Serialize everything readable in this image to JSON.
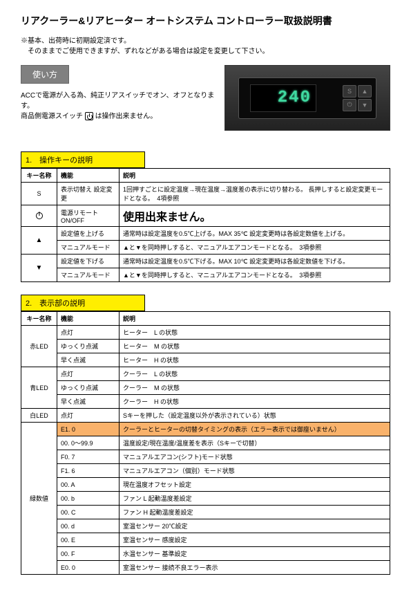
{
  "title": "リアクーラー&リアヒーター オートシステム コントローラー取扱説明書",
  "note_line1": "※基本、出荷時に初期設定済です。",
  "note_line2": "そのままでご使用できますが、ずれなどがある場合は設定を変更して下さい。",
  "usage_badge": "使い方",
  "usage_line1": "ACCで電源が入る為、純正リアスイッチでオン、オフとなります。",
  "usage_line2a": "商品側電源スイッチ",
  "usage_line2b": "は操作出来ません。",
  "display_value": "240",
  "device_btn_s": "S",
  "device_btn_pwr": "⏻",
  "device_btn_up": "▲",
  "device_btn_down": "▼",
  "section1_title": "1.　操作キーの説明",
  "t1_hdr_key": "キー名称",
  "t1_hdr_func": "機能",
  "t1_hdr_desc": "説明",
  "t1_r1_key": "S",
  "t1_r1_func": "表示切替え\n設定変更",
  "t1_r1_desc": "1回押すごとに設定温度→現在温度→温度差の表示に切り替わる。\n長押しすると設定変更モードとなる。　4項参照",
  "t1_r2_func": "電源リモート\nON/OFF",
  "t1_r2_desc": "使用出来ません。",
  "t1_r3_key": "▲",
  "t1_r3a_func": "設定値を上げる",
  "t1_r3a_desc": "通常時は設定温度を0.5℃上げる。MAX 35℃\n設定変更時は各設定数値を上げる。",
  "t1_r3b_func": "マニュアルモード",
  "t1_r3b_desc": "▲と▼を同時押しすると、マニュアルエアコンモードとなる。　3項参照",
  "t1_r4_key": "▼",
  "t1_r4a_func": "設定値を下げる",
  "t1_r4a_desc": "通常時は設定温度を0.5℃下げる。MAX 10℃\n設定変更時は各設定数値を下げる。",
  "t1_r4b_func": "マニュアルモード",
  "t1_r4b_desc": "▲と▼を同時押しすると、マニュアルエアコンモードとなる。　3項参照",
  "section2_title": "2.　表示部の説明",
  "t2_hdr_key": "キー名称",
  "t2_hdr_func": "機能",
  "t2_hdr_desc": "説明",
  "t2_r1_key": "赤LED",
  "t2_r1a_func": "点灯",
  "t2_r1a_desc": "ヒーター　L の状態",
  "t2_r1b_func": "ゆっくり点滅",
  "t2_r1b_desc": "ヒーター　M の状態",
  "t2_r1c_func": "早く点滅",
  "t2_r1c_desc": "ヒーター　H の状態",
  "t2_r2_key": "青LED",
  "t2_r2a_func": "点灯",
  "t2_r2a_desc": "クーラー　L の状態",
  "t2_r2b_func": "ゆっくり点滅",
  "t2_r2b_desc": "クーラー　M の状態",
  "t2_r2c_func": "早く点滅",
  "t2_r2c_desc": "クーラー　H の状態",
  "t2_r3_key": "白LED",
  "t2_r3_func": "点灯",
  "t2_r3_desc": "Sキーを押した（設定温度以外が表示されている）状態",
  "t2_r4_key": "緑数値",
  "t2_r4a_func": "E1. 0",
  "t2_r4a_desc": "クーラーとヒーターの切替タイミングの表示（エラー表示では御座いません）",
  "t2_r4b_func": "00. 0～99.9",
  "t2_r4b_desc": "温度設定/現在温度/温度差を表示（Sキーで切替）",
  "t2_r4c_func": "F0. 7",
  "t2_r4c_desc": "マニュアルエアコン(シフト)モード状態",
  "t2_r4d_func": "F1. 6",
  "t2_r4d_desc": "マニュアルエアコン（個別）モード状態",
  "t2_r4e_func": "00. A",
  "t2_r4e_desc": "現在温度オフセット設定",
  "t2_r4f_func": "00. b",
  "t2_r4f_desc": "ファン L 起動温度差設定",
  "t2_r4g_func": "00. C",
  "t2_r4g_desc": "ファン H 起動温度差設定",
  "t2_r4h_func": "00. d",
  "t2_r4h_desc": "室温センサー 20℃設定",
  "t2_r4i_func": "00. E",
  "t2_r4i_desc": "室温センサー 感度設定",
  "t2_r4j_func": "00. F",
  "t2_r4j_desc": "水温センサー  基準設定",
  "t2_r4k_func": "E0. 0",
  "t2_r4k_desc": "室温センサー  接続不良エラー表示"
}
